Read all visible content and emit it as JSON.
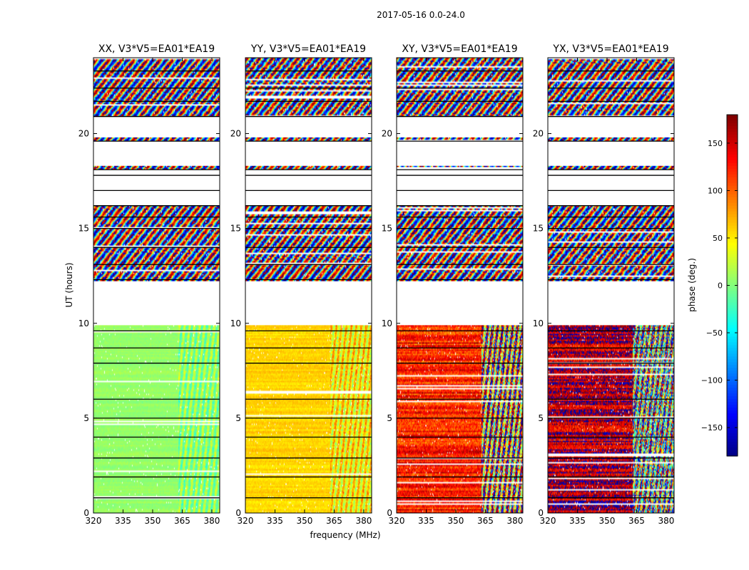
{
  "chart_data": {
    "type": "heatmap",
    "suptitle": "2017-05-16 0.0-24.0",
    "xlabel": "frequency (MHz)",
    "ylabel": "UT (hours)",
    "x_ticks": [
      320,
      335,
      350,
      365,
      380
    ],
    "y_ticks": [
      0,
      5,
      10,
      15,
      20
    ],
    "xlim": [
      320,
      384
    ],
    "ylim": [
      0,
      24
    ],
    "panels": [
      {
        "title": "XX, V3*V5=EA01*EA19",
        "base_phase_low": 8,
        "base_phase_high": 5,
        "noise": 12
      },
      {
        "title": "YY, V3*V5=EA01*EA19",
        "base_phase_low": 60,
        "base_phase_high": 50,
        "noise": 18
      },
      {
        "title": "XY, V3*V5=EA01*EA19",
        "base_phase_low": 125,
        "base_phase_high": 110,
        "noise": 55
      },
      {
        "title": "YX, V3*V5=EA01*EA19",
        "base_phase_low": 160,
        "base_phase_high": 100,
        "noise": 70
      }
    ],
    "bands": [
      {
        "start": 0.0,
        "end": 9.9,
        "character": "smooth"
      },
      {
        "start": 12.2,
        "end": 16.2,
        "character": "fringes"
      },
      {
        "start": 18.1,
        "end": 18.3,
        "character": "fringes"
      },
      {
        "start": 19.6,
        "end": 19.8,
        "character": "fringes"
      },
      {
        "start": 20.9,
        "end": 24.0,
        "character": "fringes"
      }
    ],
    "rfi_edge_mhz": 363,
    "colorbar": {
      "label": "phase (deg.)",
      "min": -180,
      "max": 180,
      "ticks": [
        150,
        100,
        50,
        0,
        -50,
        -100,
        -150
      ],
      "tick_labels": [
        "150",
        "100",
        "50",
        "0",
        "−50",
        "−100",
        "−150"
      ],
      "colormap": "jet"
    }
  }
}
